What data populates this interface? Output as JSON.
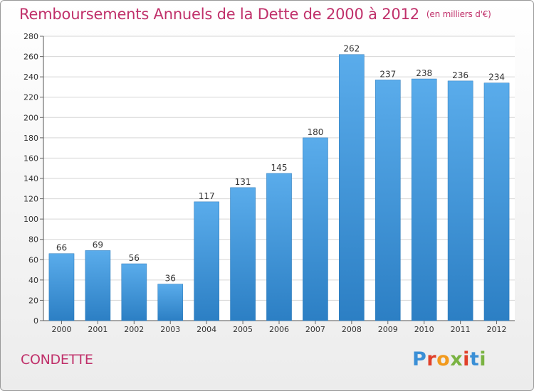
{
  "chart_data": {
    "type": "bar",
    "title": "Remboursements Annuels de la Dette de 2000 à 2012",
    "unit_label": "(en milliers d'€)",
    "categories": [
      "2000",
      "2001",
      "2002",
      "2003",
      "2004",
      "2005",
      "2006",
      "2007",
      "2008",
      "2009",
      "2010",
      "2011",
      "2012"
    ],
    "values": [
      66,
      69,
      56,
      36,
      117,
      131,
      145,
      180,
      262,
      237,
      238,
      236,
      234
    ],
    "ylim": [
      0,
      280
    ],
    "yticks": [
      0,
      20,
      40,
      60,
      80,
      100,
      120,
      140,
      160,
      180,
      200,
      220,
      240,
      260,
      280
    ],
    "grid": true,
    "bar_color": "#4a9ede"
  },
  "commune": "CONDETTE",
  "logo": {
    "text": "Proxiti",
    "colors": [
      "#3a8fd6",
      "#e0402a",
      "#f29a1d",
      "#7ab342",
      "#e0402a",
      "#3a8fd6",
      "#7ab342"
    ]
  }
}
